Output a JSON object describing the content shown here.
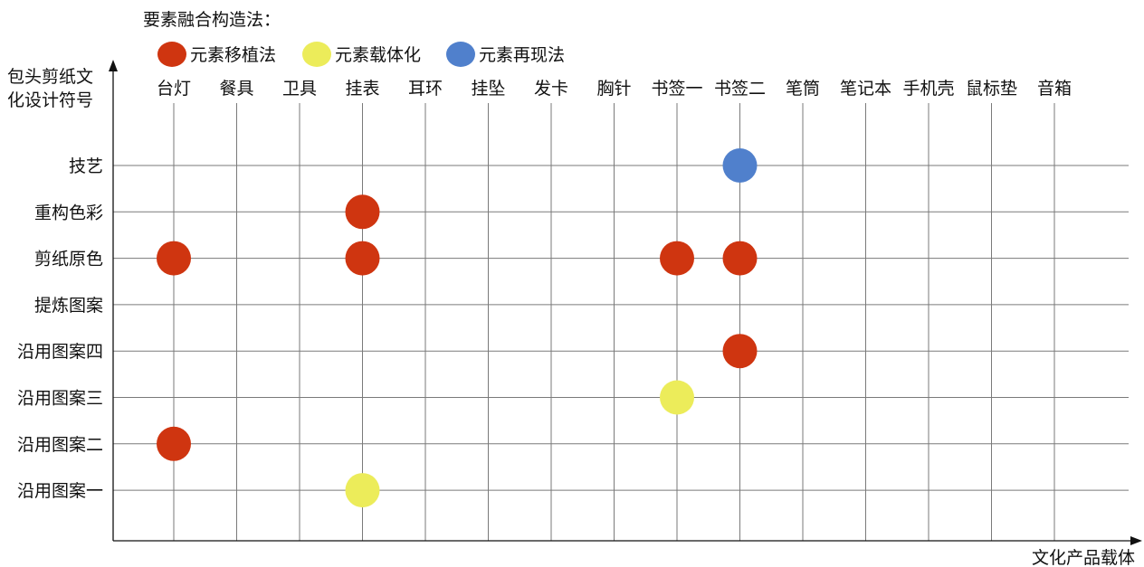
{
  "chart_data": {
    "type": "scatter",
    "legend_title": "要素融合构造法：",
    "legend_position": "top-left",
    "series": [
      {
        "name": "元素移植法",
        "color": "#cf3510"
      },
      {
        "name": "元素载体化",
        "color": "#ecec5a"
      },
      {
        "name": "元素再现法",
        "color": "#5080cc"
      }
    ],
    "y_axis_title_lines": [
      "包头剪纸文",
      "化设计符号"
    ],
    "x_axis_title": "文化产品载体",
    "categories": [
      "台灯",
      "餐具",
      "卫具",
      "挂表",
      "耳环",
      "挂坠",
      "发卡",
      "胸针",
      "书签一",
      "书签二",
      "笔筒",
      "笔记本",
      "手机壳",
      "鼠标垫",
      "音箱"
    ],
    "y_categories": [
      "技艺",
      "重构色彩",
      "剪纸原色",
      "提炼图案",
      "沿用图案四",
      "沿用图案三",
      "沿用图案二",
      "沿用图案一"
    ],
    "points": [
      {
        "x": "书签二",
        "y": "技艺",
        "series": "元素再现法"
      },
      {
        "x": "挂表",
        "y": "重构色彩",
        "series": "元素移植法"
      },
      {
        "x": "台灯",
        "y": "剪纸原色",
        "series": "元素移植法"
      },
      {
        "x": "挂表",
        "y": "剪纸原色",
        "series": "元素移植法"
      },
      {
        "x": "书签一",
        "y": "剪纸原色",
        "series": "元素移植法"
      },
      {
        "x": "书签二",
        "y": "剪纸原色",
        "series": "元素移植法"
      },
      {
        "x": "书签二",
        "y": "沿用图案四",
        "series": "元素移植法"
      },
      {
        "x": "书签一",
        "y": "沿用图案三",
        "series": "元素载体化"
      },
      {
        "x": "台灯",
        "y": "沿用图案二",
        "series": "元素移植法"
      },
      {
        "x": "挂表",
        "y": "沿用图案一",
        "series": "元素载体化"
      }
    ],
    "grid": true
  }
}
